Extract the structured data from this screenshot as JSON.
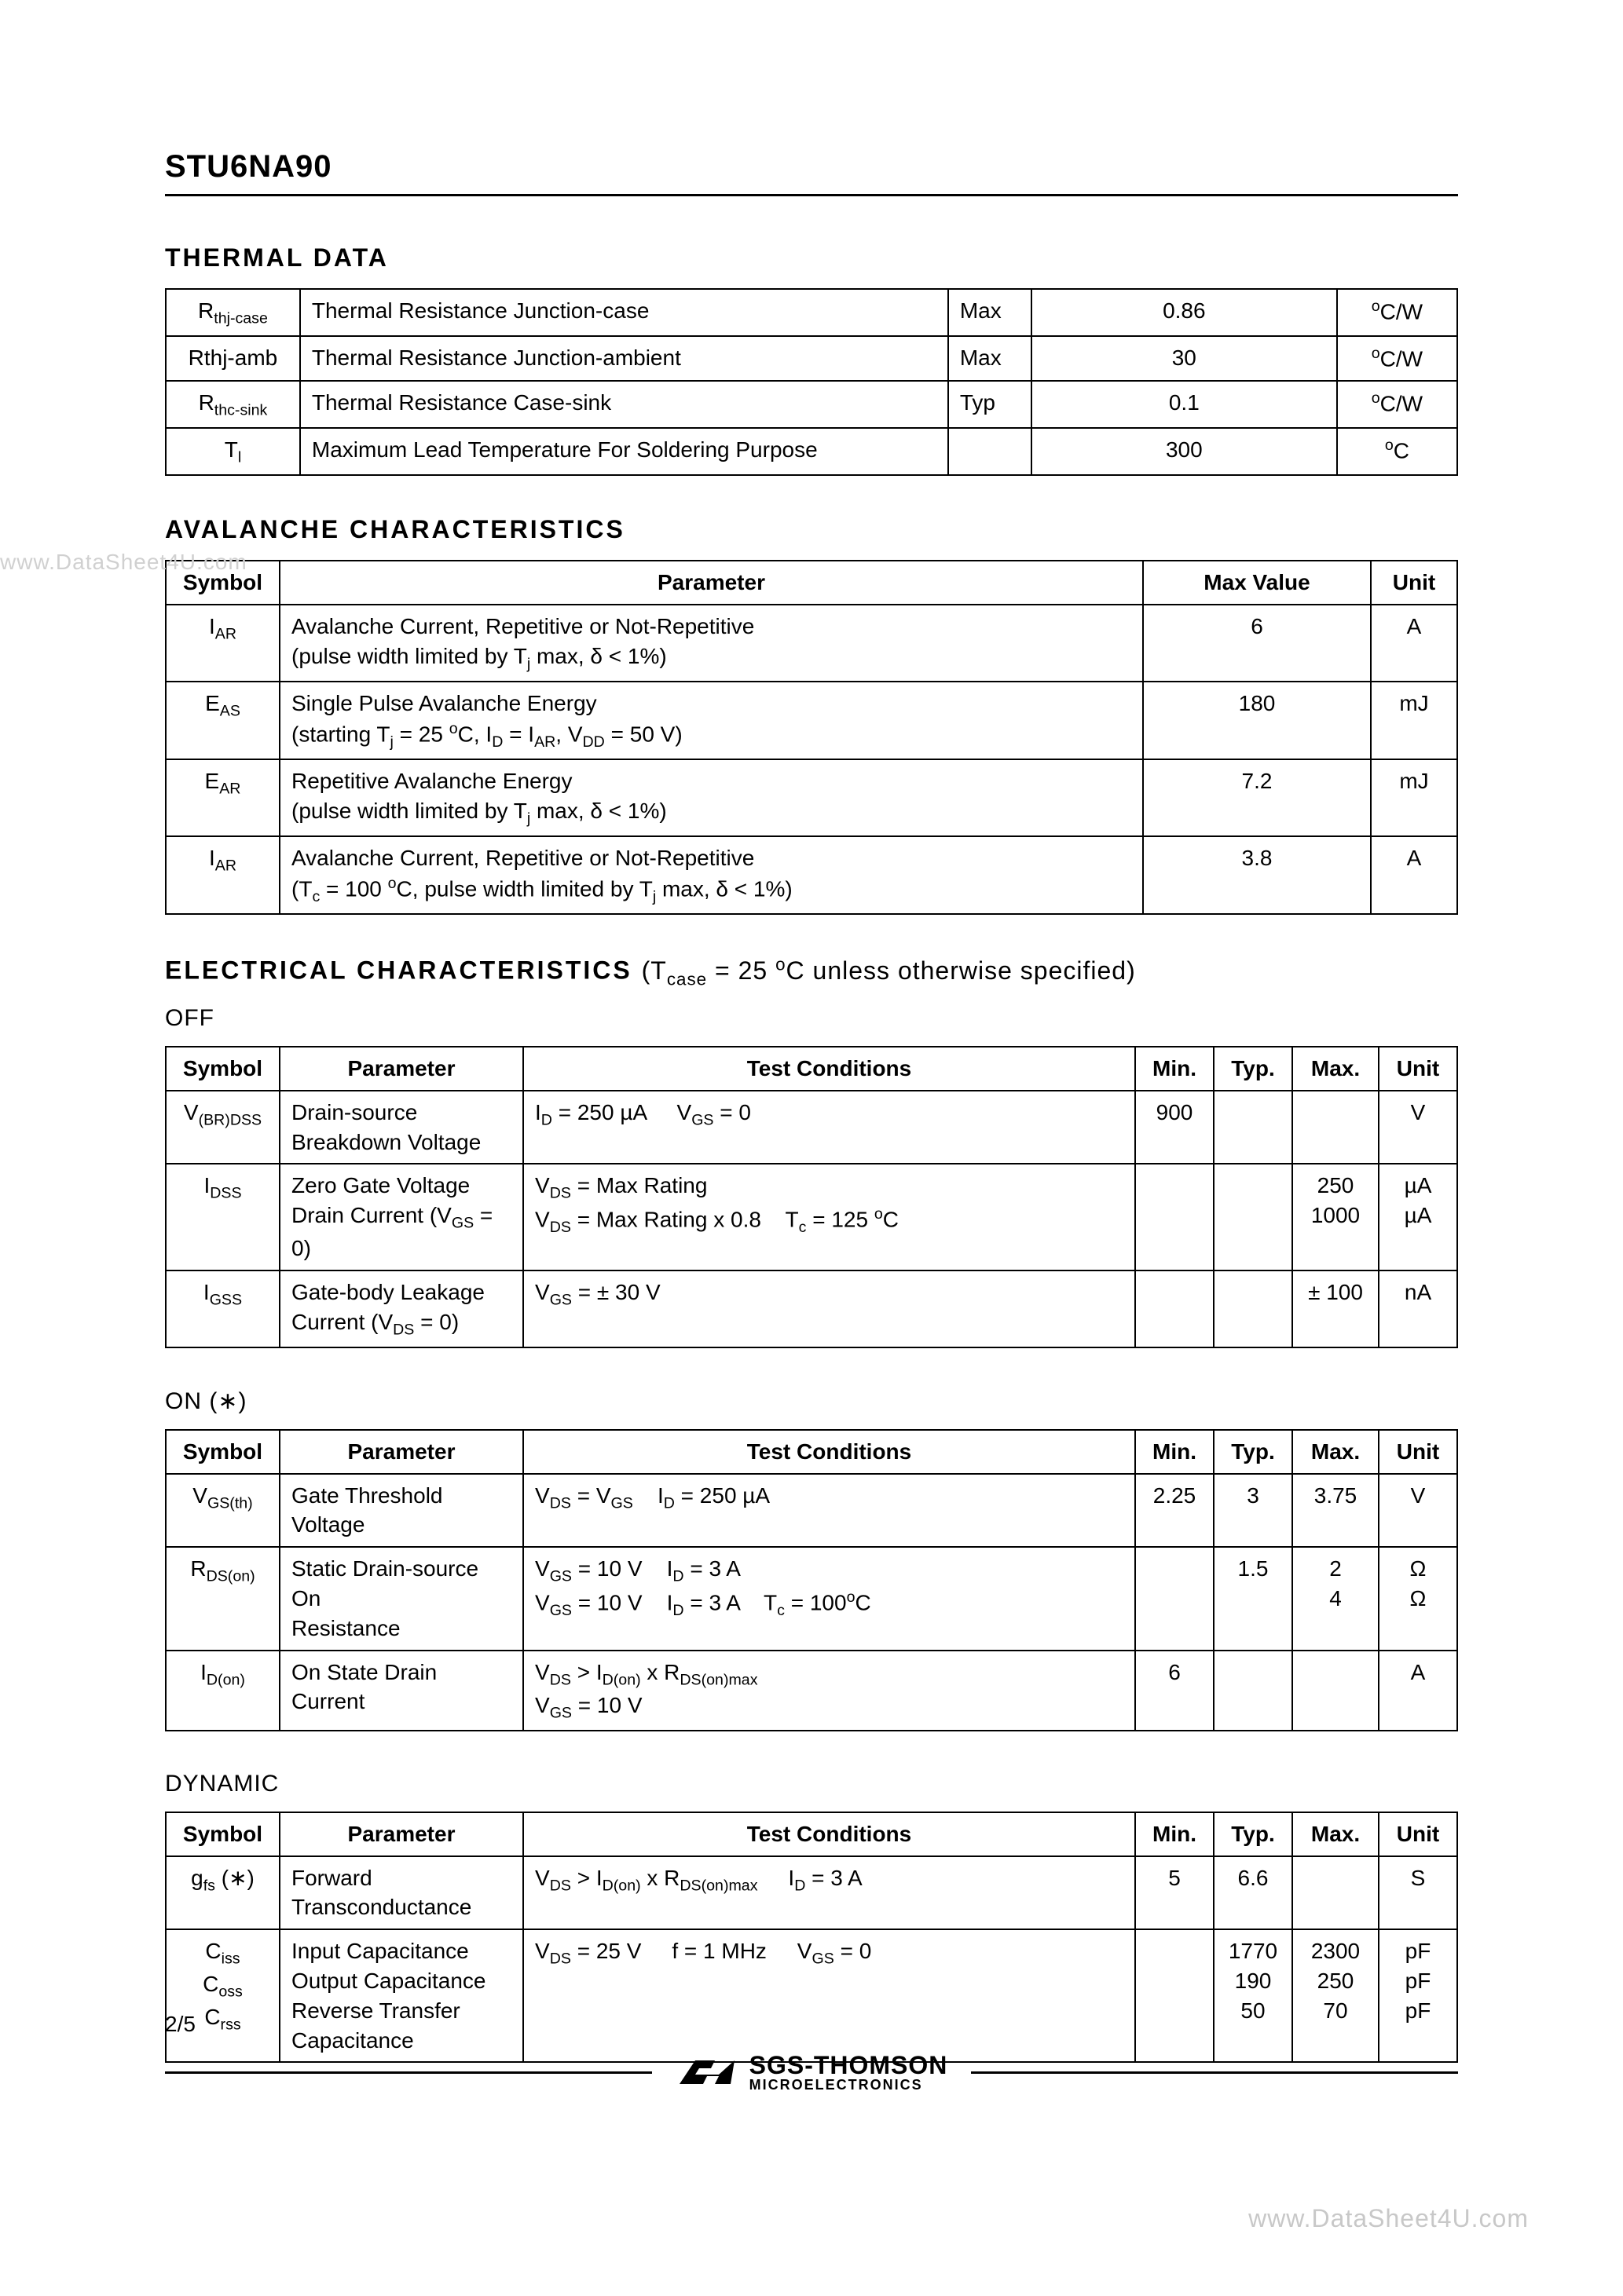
{
  "part_number": "STU6NA90",
  "watermark_left": "www.DataSheet4U.com",
  "watermark_bottom": "www.DataSheet4U.com",
  "page_number": "2/5",
  "footer": {
    "company_main": "SGS-THOMSON",
    "company_sub": "MICROELECTRONICS"
  },
  "thermal": {
    "heading": "THERMAL  DATA",
    "rows": [
      {
        "sym_html": "R<sub>thj-case</sub>",
        "desc": "Thermal  Resistance  Junction-case",
        "rating": "Max",
        "value": "0.86",
        "unit_html": "<sup>o</sup>C/W"
      },
      {
        "sym_html": "Rthj-amb",
        "desc": "Thermal  Resistance  Junction-ambient",
        "rating": "Max",
        "value": "30",
        "unit_html": "<sup>o</sup>C/W"
      },
      {
        "sym_html": "R<sub>thc-sink</sub>",
        "desc": "Thermal  Resistance  Case-sink",
        "rating": "Typ",
        "value": "0.1",
        "unit_html": "<sup>o</sup>C/W"
      },
      {
        "sym_html": "T<sub>l</sub>",
        "desc": "Maximum Lead Temperature For Soldering Purpose",
        "rating": "",
        "value": "300",
        "unit_html": "<sup>o</sup>C"
      }
    ]
  },
  "avalanche": {
    "heading": "AVALANCHE  CHARACTERISTICS",
    "columns": [
      "Symbol",
      "Parameter",
      "Max  Value",
      "Unit"
    ],
    "col_widths": [
      "145px",
      "auto",
      "290px",
      "110px"
    ],
    "rows": [
      {
        "sym_html": "I<sub>AR</sub>",
        "param_html": "Avalanche Current, Repetitive or Not-Repetitive<br>(pulse width limited by T<sub>j</sub> max, δ &lt; 1%)",
        "max": "6",
        "unit": "A"
      },
      {
        "sym_html": "E<sub>AS</sub>",
        "param_html": "Single Pulse Avalanche Energy<br>(starting T<sub>j</sub> = 25 <sup>o</sup>C, I<sub>D</sub> = I<sub>AR</sub>, V<sub>DD</sub> = 50 V)",
        "max": "180",
        "unit": "mJ"
      },
      {
        "sym_html": "E<sub>AR</sub>",
        "param_html": "Repetitive Avalanche Energy<br>(pulse width limited by T<sub>j</sub> max, δ &lt; 1%)",
        "max": "7.2",
        "unit": "mJ"
      },
      {
        "sym_html": "I<sub>AR</sub>",
        "param_html": "Avalanche Current, Repetitive or Not-Repetitive<br>(T<sub>c</sub> = 100 <sup>o</sup>C, pulse width limited by T<sub>j</sub> max, δ &lt; 1%)",
        "max": "3.8",
        "unit": "A"
      }
    ]
  },
  "electrical": {
    "heading_html": "ELECTRICAL  CHARACTERISTICS",
    "cond_html": "(T<sub>case</sub> = 25 <sup>o</sup>C unless otherwise specified)",
    "col_widths": [
      "145px",
      "310px",
      "auto",
      "100px",
      "100px",
      "110px",
      "100px"
    ],
    "columns": [
      "Symbol",
      "Parameter",
      "Test Conditions",
      "Min.",
      "Typ.",
      "Max.",
      "Unit"
    ],
    "off": {
      "label": "OFF",
      "rows": [
        {
          "sym_html": "V<sub>(BR)DSS</sub>",
          "param_html": "Drain-source<br>Breakdown Voltage",
          "cond_html": "I<sub>D</sub> = 250 µA &nbsp;&nbsp;&nbsp; V<sub>GS</sub> = 0",
          "min": "900",
          "typ": "",
          "max": "",
          "unit": "V"
        },
        {
          "sym_html": "I<sub>DSS</sub>",
          "param_html": "Zero Gate Voltage<br>Drain Current (V<sub>GS</sub> = 0)",
          "cond_html": "V<sub>DS</sub> = Max Rating<br>V<sub>DS</sub> = Max Rating x 0.8 &nbsp;&nbsp; T<sub>c</sub> = 125 <sup>o</sup>C",
          "min": "",
          "typ": "",
          "max": "250<br>1000",
          "unit": "µA<br>µA"
        },
        {
          "sym_html": "I<sub>GSS</sub>",
          "param_html": "Gate-body Leakage<br>Current (V<sub>DS</sub> = 0)",
          "cond_html": "V<sub>GS</sub> = ± 30 V",
          "min": "",
          "typ": "",
          "max": "± 100",
          "unit": "nA"
        }
      ]
    },
    "on": {
      "label": "ON (∗)",
      "rows": [
        {
          "sym_html": "V<sub>GS(th)</sub>",
          "param_html": "Gate Threshold Voltage",
          "cond_html": "V<sub>DS</sub> = V<sub>GS</sub> &nbsp;&nbsp; I<sub>D</sub> = 250 µA",
          "min": "2.25",
          "typ": "3",
          "max": "3.75",
          "unit": "V"
        },
        {
          "sym_html": "R<sub>DS(on)</sub>",
          "param_html": "Static Drain-source On<br>Resistance",
          "cond_html": "V<sub>GS</sub> = 10 V &nbsp;&nbsp; I<sub>D</sub> = 3 A<br>V<sub>GS</sub> = 10 V &nbsp;&nbsp; I<sub>D</sub> = 3 A &nbsp;&nbsp; T<sub>c</sub> = 100<sup>o</sup>C",
          "min": "",
          "typ": "1.5",
          "max": "2<br>4",
          "unit": "Ω<br>Ω"
        },
        {
          "sym_html": "I<sub>D(on)</sub>",
          "param_html": "On State Drain Current",
          "cond_html": "V<sub>DS</sub> &gt; I<sub>D(on)</sub> x R<sub>DS(on)max</sub><br>V<sub>GS</sub> = 10 V",
          "min": "6",
          "typ": "",
          "max": "",
          "unit": "A"
        }
      ]
    },
    "dynamic": {
      "label": "DYNAMIC",
      "rows": [
        {
          "sym_html": "g<sub>fs</sub> (∗)",
          "param_html": "Forward<br>Transconductance",
          "cond_html": "V<sub>DS</sub> &gt; I<sub>D(on)</sub> x R<sub>DS(on)max</sub> &nbsp;&nbsp;&nbsp; I<sub>D</sub> = 3 A",
          "min": "5",
          "typ": "6.6",
          "max": "",
          "unit": "S"
        },
        {
          "sym_html": "C<sub>iss</sub><br>C<sub>oss</sub><br>C<sub>rss</sub>",
          "param_html": "Input Capacitance<br>Output Capacitance<br>Reverse Transfer<br>Capacitance",
          "cond_html": "V<sub>DS</sub> = 25 V &nbsp;&nbsp;&nbsp; f = 1 MHz &nbsp;&nbsp;&nbsp; V<sub>GS</sub> = 0",
          "min": "",
          "typ": "1770<br>190<br>50",
          "max": "2300<br>250<br>70",
          "unit": "pF<br>pF<br>pF"
        }
      ]
    }
  }
}
